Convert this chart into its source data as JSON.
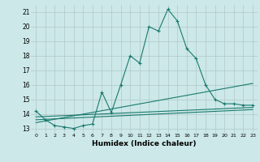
{
  "xlabel": "Humidex (Indice chaleur)",
  "bg_color": "#cce8e8",
  "grid_color": "#b0c8c8",
  "line_color": "#1a7a6e",
  "xlim": [
    -0.5,
    23.5
  ],
  "ylim": [
    12.7,
    21.5
  ],
  "xticks": [
    0,
    1,
    2,
    3,
    4,
    5,
    6,
    7,
    8,
    9,
    10,
    11,
    12,
    13,
    14,
    15,
    16,
    17,
    18,
    19,
    20,
    21,
    22,
    23
  ],
  "yticks": [
    13,
    14,
    15,
    16,
    17,
    18,
    19,
    20,
    21
  ],
  "series1_x": [
    0,
    1,
    2,
    3,
    4,
    5,
    6,
    7,
    8,
    9,
    10,
    11,
    12,
    13,
    14,
    15,
    16,
    17,
    18,
    19,
    20,
    21,
    22,
    23
  ],
  "series1_y": [
    14.2,
    13.6,
    13.2,
    13.1,
    13.0,
    13.2,
    13.3,
    15.5,
    14.1,
    16.0,
    18.0,
    17.5,
    20.0,
    19.7,
    21.2,
    20.4,
    18.5,
    17.8,
    16.0,
    15.0,
    14.7,
    14.7,
    14.6,
    14.6
  ],
  "series2_x": [
    0,
    23
  ],
  "series2_y": [
    13.8,
    14.45
  ],
  "series3_x": [
    0,
    23
  ],
  "series3_y": [
    13.6,
    14.3
  ],
  "series4_x": [
    0,
    23
  ],
  "series4_y": [
    13.4,
    16.1
  ]
}
